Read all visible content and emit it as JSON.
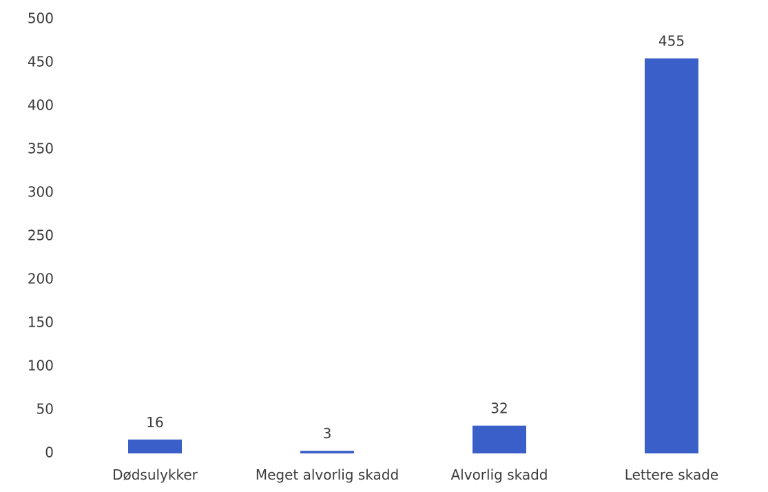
{
  "chart_data": {
    "type": "bar",
    "title": "",
    "xlabel": "",
    "ylabel": "",
    "categories": [
      "Dødsulykker",
      "Meget alvorlig skadd",
      "Alvorlig skadd",
      "Lettere skade"
    ],
    "values": [
      16,
      3,
      32,
      455
    ],
    "data_labels": [
      "16",
      "3",
      "32",
      "455"
    ],
    "ylim": [
      0,
      500
    ],
    "yticks": [
      0,
      50,
      100,
      150,
      200,
      250,
      300,
      350,
      400,
      450,
      500
    ],
    "ytick_labels": [
      "0",
      "50",
      "100",
      "150",
      "200",
      "250",
      "300",
      "350",
      "400",
      "450",
      "500"
    ],
    "grid": false,
    "legend": "none",
    "bar_color": "#3a5fc8"
  }
}
